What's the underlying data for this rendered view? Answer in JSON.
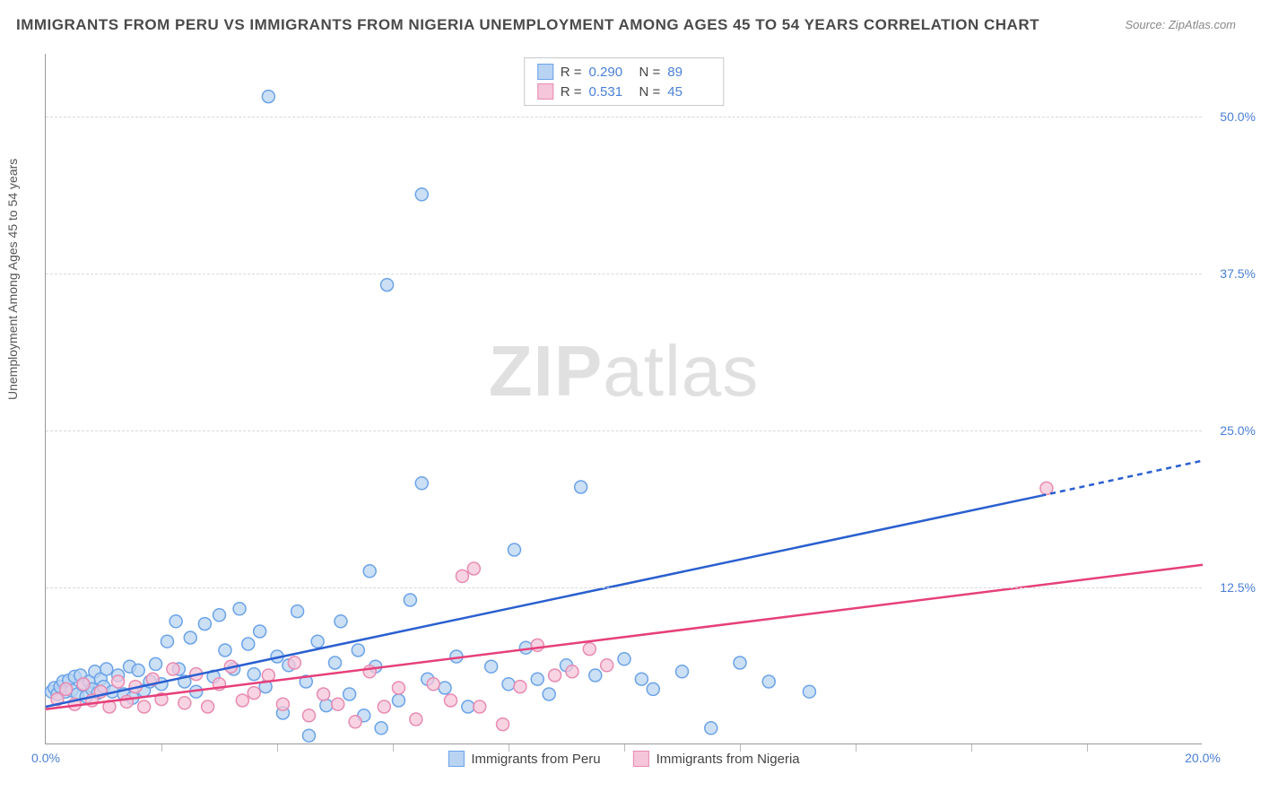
{
  "title": "IMMIGRANTS FROM PERU VS IMMIGRANTS FROM NIGERIA UNEMPLOYMENT AMONG AGES 45 TO 54 YEARS CORRELATION CHART",
  "source": "Source: ZipAtlas.com",
  "ylabel": "Unemployment Among Ages 45 to 54 years",
  "watermark_a": "ZIP",
  "watermark_b": "atlas",
  "chart": {
    "type": "scatter",
    "xlim": [
      0,
      20
    ],
    "ylim": [
      0,
      55
    ],
    "xtick_labels": [
      "0.0%",
      "20.0%"
    ],
    "xtick_positions": [
      0,
      20
    ],
    "xtick_minor": [
      2,
      4,
      6,
      8,
      10,
      12,
      14,
      16,
      18
    ],
    "ytick_labels": [
      "12.5%",
      "25.0%",
      "37.5%",
      "50.0%"
    ],
    "ytick_positions": [
      12.5,
      25,
      37.5,
      50
    ],
    "background_color": "#ffffff",
    "grid_color": "#d8d8d8"
  },
  "series": [
    {
      "name": "Immigrants from Peru",
      "stroke": "#6ba3e8",
      "fill": "#b9d4f2",
      "marker_r": 7,
      "trend_color": "#2a5fd0",
      "trend_width": 2.5,
      "trend": {
        "x1": 0,
        "y1": 3.0,
        "x2": 17.2,
        "y2": 19.8
      },
      "trend_dash_ext": {
        "x1": 17.2,
        "y1": 19.8,
        "x2": 20,
        "y2": 22.6
      },
      "R": "0.290",
      "N": "89",
      "points": [
        [
          0.1,
          4.2
        ],
        [
          0.15,
          4.5
        ],
        [
          0.2,
          4.0
        ],
        [
          0.25,
          4.6
        ],
        [
          0.3,
          5.0
        ],
        [
          0.35,
          4.2
        ],
        [
          0.4,
          5.1
        ],
        [
          0.45,
          4.3
        ],
        [
          0.5,
          5.4
        ],
        [
          0.55,
          4.0
        ],
        [
          0.6,
          5.5
        ],
        [
          0.65,
          4.7
        ],
        [
          0.7,
          3.8
        ],
        [
          0.75,
          5.0
        ],
        [
          0.8,
          4.4
        ],
        [
          0.85,
          5.8
        ],
        [
          0.9,
          4.1
        ],
        [
          0.95,
          5.2
        ],
        [
          1.0,
          4.6
        ],
        [
          1.05,
          6.0
        ],
        [
          1.15,
          4.2
        ],
        [
          1.25,
          5.5
        ],
        [
          1.35,
          4.0
        ],
        [
          1.45,
          6.2
        ],
        [
          1.5,
          3.7
        ],
        [
          1.6,
          5.9
        ],
        [
          1.7,
          4.3
        ],
        [
          1.8,
          5.0
        ],
        [
          1.9,
          6.4
        ],
        [
          2.0,
          4.8
        ],
        [
          2.1,
          8.2
        ],
        [
          2.25,
          9.8
        ],
        [
          2.3,
          6.0
        ],
        [
          2.4,
          5.0
        ],
        [
          2.5,
          8.5
        ],
        [
          2.6,
          4.2
        ],
        [
          2.75,
          9.6
        ],
        [
          2.9,
          5.4
        ],
        [
          3.0,
          10.3
        ],
        [
          3.1,
          7.5
        ],
        [
          3.25,
          6.0
        ],
        [
          3.35,
          10.8
        ],
        [
          3.5,
          8.0
        ],
        [
          3.6,
          5.6
        ],
        [
          3.7,
          9.0
        ],
        [
          3.8,
          4.6
        ],
        [
          3.85,
          51.6
        ],
        [
          4.0,
          7.0
        ],
        [
          4.1,
          2.5
        ],
        [
          4.2,
          6.3
        ],
        [
          4.35,
          10.6
        ],
        [
          4.5,
          5.0
        ],
        [
          4.55,
          0.7
        ],
        [
          4.7,
          8.2
        ],
        [
          4.85,
          3.1
        ],
        [
          5.0,
          6.5
        ],
        [
          5.1,
          9.8
        ],
        [
          5.25,
          4.0
        ],
        [
          5.4,
          7.5
        ],
        [
          5.5,
          2.3
        ],
        [
          5.6,
          13.8
        ],
        [
          5.7,
          6.2
        ],
        [
          5.8,
          1.3
        ],
        [
          5.9,
          36.6
        ],
        [
          6.1,
          3.5
        ],
        [
          6.3,
          11.5
        ],
        [
          6.5,
          20.8
        ],
        [
          6.5,
          43.8
        ],
        [
          6.6,
          5.2
        ],
        [
          6.9,
          4.5
        ],
        [
          7.1,
          7.0
        ],
        [
          7.3,
          3.0
        ],
        [
          7.7,
          6.2
        ],
        [
          8.0,
          4.8
        ],
        [
          8.1,
          15.5
        ],
        [
          8.3,
          7.7
        ],
        [
          8.5,
          5.2
        ],
        [
          8.7,
          4.0
        ],
        [
          9.0,
          6.3
        ],
        [
          9.25,
          20.5
        ],
        [
          9.5,
          5.5
        ],
        [
          10.0,
          6.8
        ],
        [
          10.3,
          5.2
        ],
        [
          10.5,
          4.4
        ],
        [
          11.0,
          5.8
        ],
        [
          11.5,
          1.3
        ],
        [
          12.0,
          6.5
        ],
        [
          12.5,
          5.0
        ],
        [
          13.2,
          4.2
        ]
      ]
    },
    {
      "name": "Immigrants from Nigeria",
      "stroke": "#e88bb1",
      "fill": "#f5c5d9",
      "marker_r": 7,
      "trend_color": "#e6407a",
      "trend_width": 2.5,
      "trend": {
        "x1": 0,
        "y1": 2.8,
        "x2": 20,
        "y2": 14.3
      },
      "R": "0.531",
      "N": "45",
      "points": [
        [
          0.2,
          3.6
        ],
        [
          0.35,
          4.4
        ],
        [
          0.5,
          3.2
        ],
        [
          0.65,
          4.8
        ],
        [
          0.8,
          3.5
        ],
        [
          0.95,
          4.2
        ],
        [
          1.1,
          3.0
        ],
        [
          1.25,
          5.0
        ],
        [
          1.4,
          3.4
        ],
        [
          1.55,
          4.6
        ],
        [
          1.7,
          3.0
        ],
        [
          1.85,
          5.2
        ],
        [
          2.0,
          3.6
        ],
        [
          2.2,
          6.0
        ],
        [
          2.4,
          3.3
        ],
        [
          2.6,
          5.6
        ],
        [
          2.8,
          3.0
        ],
        [
          3.0,
          4.8
        ],
        [
          3.2,
          6.2
        ],
        [
          3.4,
          3.5
        ],
        [
          3.6,
          4.1
        ],
        [
          3.85,
          5.5
        ],
        [
          4.1,
          3.2
        ],
        [
          4.3,
          6.5
        ],
        [
          4.55,
          2.3
        ],
        [
          4.8,
          4.0
        ],
        [
          5.05,
          3.2
        ],
        [
          5.35,
          1.8
        ],
        [
          5.6,
          5.8
        ],
        [
          5.85,
          3.0
        ],
        [
          6.1,
          4.5
        ],
        [
          6.4,
          2.0
        ],
        [
          6.7,
          4.8
        ],
        [
          7.0,
          3.5
        ],
        [
          7.2,
          13.4
        ],
        [
          7.4,
          14.0
        ],
        [
          7.5,
          3.0
        ],
        [
          7.9,
          1.6
        ],
        [
          8.2,
          4.6
        ],
        [
          8.5,
          7.9
        ],
        [
          8.8,
          5.5
        ],
        [
          9.1,
          5.8
        ],
        [
          9.4,
          7.6
        ],
        [
          9.7,
          6.3
        ],
        [
          17.3,
          20.4
        ]
      ]
    }
  ]
}
